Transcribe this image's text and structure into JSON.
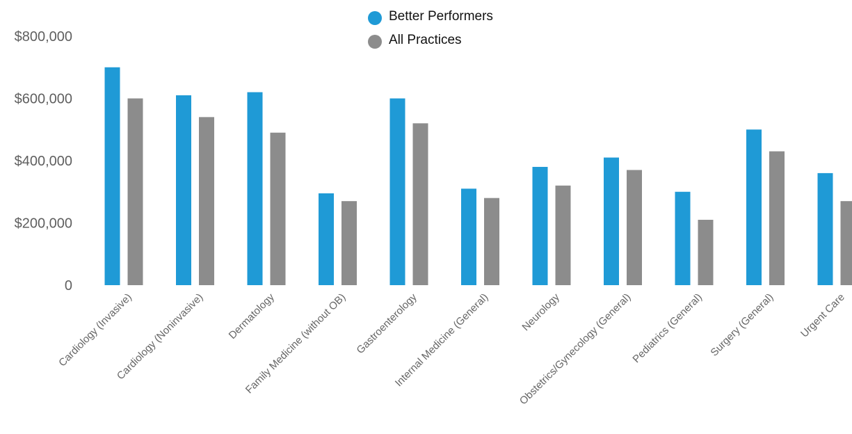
{
  "chart_data": {
    "type": "bar",
    "title": "",
    "xlabel": "",
    "ylabel": "",
    "categories": [
      "Cardiology (Invasive)",
      "Cardiology (Noninvasive)",
      "Dermatology",
      "Family Medicine (without OB)",
      "Gastroenterology",
      "Internal Medicine (General)",
      "Neurology",
      "Obstetrics/Gynecology (General)",
      "Pediatrics (General)",
      "Surgery (General)",
      "Urgent Care"
    ],
    "series": [
      {
        "name": "Better Performers",
        "color": "#1f9ad6",
        "values": [
          700000,
          610000,
          620000,
          295000,
          600000,
          310000,
          380000,
          410000,
          300000,
          500000,
          360000
        ]
      },
      {
        "name": "All Practices",
        "color": "#8c8c8c",
        "values": [
          600000,
          540000,
          490000,
          270000,
          520000,
          280000,
          320000,
          370000,
          210000,
          430000,
          270000
        ]
      }
    ],
    "ylim": [
      0,
      800000
    ],
    "yticks": [
      0,
      200000,
      400000,
      600000,
      800000
    ],
    "ytick_labels": [
      "0",
      "$200,000",
      "$400,000",
      "$600,000",
      "$800,000"
    ],
    "legend_position": "top-center",
    "grid": false
  }
}
